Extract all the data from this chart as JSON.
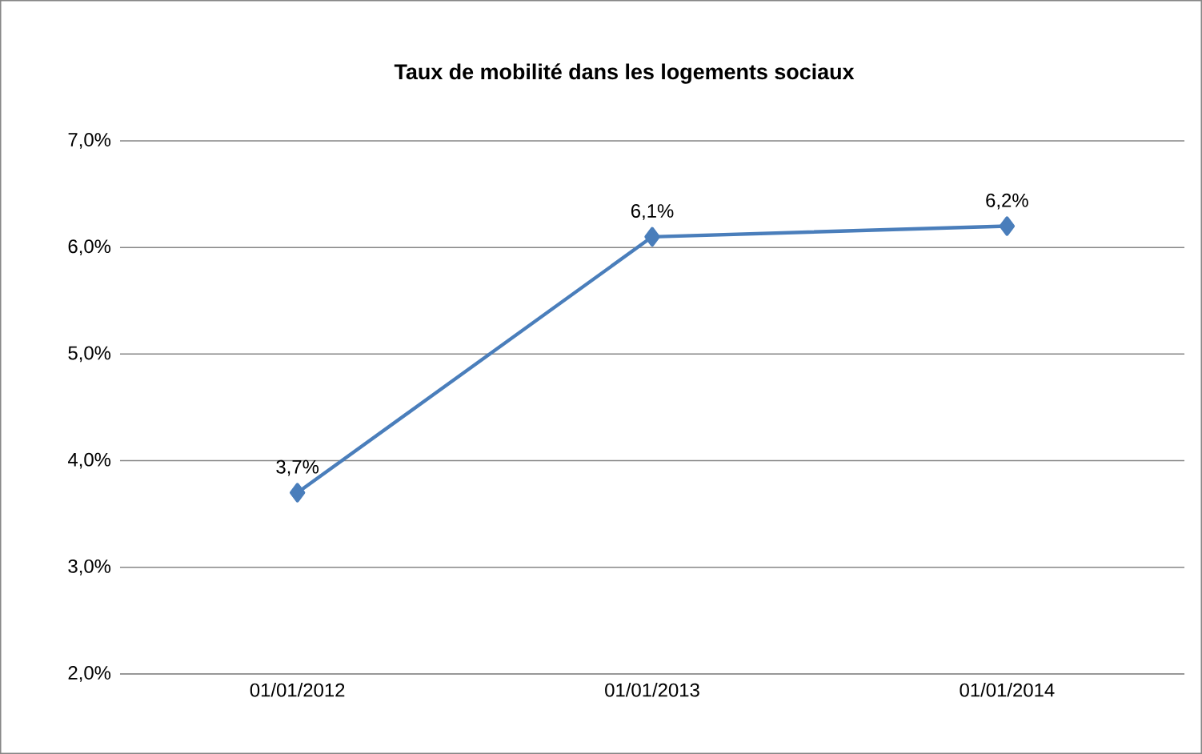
{
  "chart_data": {
    "type": "line",
    "title": "Taux de mobilité dans les logements sociaux",
    "categories": [
      "01/01/2012",
      "01/01/2013",
      "01/01/2014"
    ],
    "series": [
      {
        "color": "#4a7ebb",
        "values": [
          3.7,
          6.1,
          6.2
        ],
        "value_labels": [
          "3,7%",
          "6,1%",
          "6,2%"
        ]
      }
    ],
    "ylim": [
      2,
      7
    ],
    "yticks": [
      {
        "value": 2,
        "label": "2,0%"
      },
      {
        "value": 3,
        "label": "3,0%"
      },
      {
        "value": 4,
        "label": "4,0%"
      },
      {
        "value": 5,
        "label": "5,0%"
      },
      {
        "value": 6,
        "label": "6,0%"
      },
      {
        "value": 7,
        "label": "7,0%"
      }
    ],
    "grid": "y",
    "marker": "diamond",
    "line_style": "solid"
  }
}
